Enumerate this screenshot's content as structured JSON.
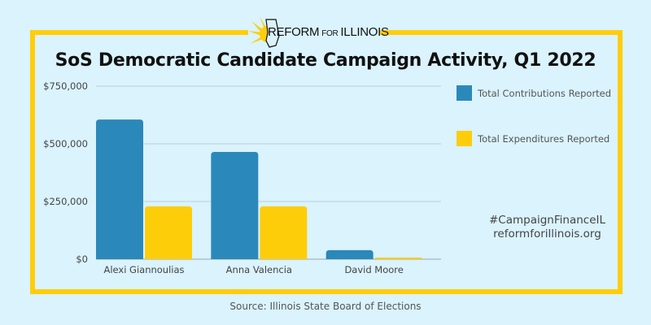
{
  "logo": {
    "word1": "REFORM",
    "word2": "FOR",
    "word3": "ILLINOIS"
  },
  "footer": {
    "source": "Source: Illinois State Board of Elections"
  },
  "tags": {
    "hashtag": "#CampaignFinanceIL",
    "website": "reformforillinois.org"
  },
  "colors": {
    "contributions": "#2b88bb",
    "expenditures": "#fecd0a",
    "frame": "#fecd0a",
    "background": "#daf3fd"
  },
  "chart_data": {
    "type": "bar",
    "title": "SoS Democratic Candidate Campaign Activity, Q1 2022",
    "xlabel": "",
    "ylabel": "",
    "categories": [
      "Alexi Giannoulias",
      "Anna Valencia",
      "David Moore"
    ],
    "series": [
      {
        "name": "Total Contributions Reported",
        "values": [
          605000,
          465000,
          39000
        ]
      },
      {
        "name": "Total Expenditures Reported",
        "values": [
          229000,
          229000,
          7000
        ]
      }
    ],
    "ylim": [
      0,
      750000
    ],
    "yticks": [
      0,
      250000,
      500000,
      750000
    ],
    "ytick_labels": [
      "$0",
      "$250,000",
      "$500,000",
      "$750,000"
    ],
    "grid": true,
    "legend": "right"
  }
}
